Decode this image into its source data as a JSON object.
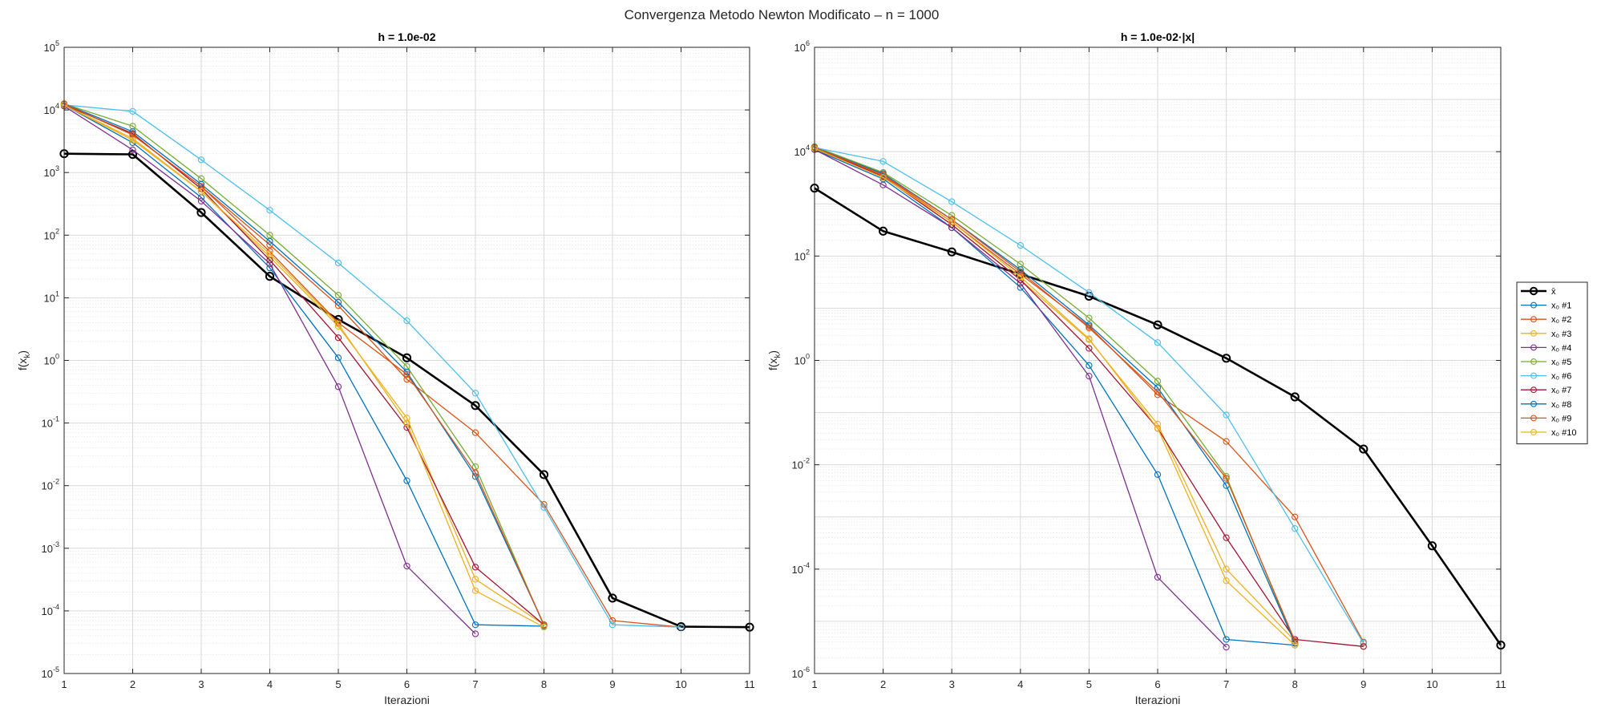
{
  "figure_title": "Convergenza Metodo Newton Modificato – n = 1000",
  "colors": {
    "xbar": "#000000",
    "series": [
      "#0072BD",
      "#D95319",
      "#EDB120",
      "#7E2F8E",
      "#77AC30",
      "#4DBEEE",
      "#A2142F",
      "#0072BD",
      "#D95319",
      "#EDB120"
    ]
  },
  "legend": {
    "placement": "outside-right",
    "entries": [
      "x̄",
      "x₀ #1",
      "x₀ #2",
      "x₀ #3",
      "x₀ #4",
      "x₀ #5",
      "x₀ #6",
      "x₀ #7",
      "x₀ #8",
      "x₀ #9",
      "x₀ #10"
    ]
  },
  "chart_data": [
    {
      "type": "line",
      "title": "h = 1.0e-02",
      "xlabel": "Iterazioni",
      "ylabel_main": "f(x",
      "ylabel_sub": "k",
      "ylabel_close": ")",
      "yscale": "log",
      "xlim": [
        1,
        11
      ],
      "ylim_exp": [
        -5,
        5
      ],
      "xticks": [
        "1",
        "2",
        "3",
        "4",
        "5",
        "6",
        "7",
        "8",
        "9",
        "10",
        "11"
      ],
      "yticks": [
        {
          "base": "10",
          "exp": "-5"
        },
        {
          "base": "10",
          "exp": "-4"
        },
        {
          "base": "10",
          "exp": "-3"
        },
        {
          "base": "10",
          "exp": "-2"
        },
        {
          "base": "10",
          "exp": "-1"
        },
        {
          "base": "10",
          "exp": "0"
        },
        {
          "base": "10",
          "exp": "1"
        },
        {
          "base": "10",
          "exp": "2"
        },
        {
          "base": "10",
          "exp": "3"
        },
        {
          "base": "10",
          "exp": "4"
        },
        {
          "base": "10",
          "exp": "5"
        }
      ],
      "grid": true,
      "series": [
        {
          "x": [
            1,
            2,
            3,
            4,
            5,
            6,
            7,
            8,
            9,
            10,
            11
          ],
          "y": [
            2000,
            1950,
            230,
            22,
            4.5,
            1.1,
            0.19,
            0.015,
            0.00016,
            5.6e-05,
            5.5e-05
          ]
        },
        {
          "x": [
            1,
            2,
            3,
            4,
            5,
            6,
            7,
            8
          ],
          "y": [
            12000,
            3000,
            400,
            30,
            1.1,
            0.012,
            6e-05,
            5.7e-05
          ]
        },
        {
          "x": [
            1,
            2,
            3,
            4,
            5,
            6,
            7,
            8,
            9,
            10
          ],
          "y": [
            12500,
            4000,
            600,
            70,
            7.5,
            0.5,
            0.07,
            0.005,
            7e-05,
            5.5e-05
          ]
        },
        {
          "x": [
            1,
            2,
            3,
            4,
            5,
            6,
            7,
            8
          ],
          "y": [
            12000,
            3500,
            500,
            45,
            3.5,
            0.12,
            0.00032,
            6e-05
          ]
        },
        {
          "x": [
            1,
            2,
            3,
            4,
            5,
            6,
            7
          ],
          "y": [
            11500,
            2300,
            350,
            35,
            0.38,
            0.00052,
            4.3e-05
          ]
        },
        {
          "x": [
            1,
            2,
            3,
            4,
            5,
            6,
            7,
            8
          ],
          "y": [
            12500,
            5500,
            800,
            100,
            11,
            0.8,
            0.02,
            5.8e-05
          ]
        },
        {
          "x": [
            1,
            2,
            3,
            4,
            5,
            6,
            7,
            8,
            9,
            10
          ],
          "y": [
            12000,
            9500,
            1600,
            250,
            36,
            4.3,
            0.3,
            0.0045,
            6e-05,
            5.5e-05
          ]
        },
        {
          "x": [
            1,
            2,
            3,
            4,
            5,
            6,
            7,
            8
          ],
          "y": [
            12000,
            4200,
            550,
            40,
            2.3,
            0.085,
            0.0005,
            6e-05
          ]
        },
        {
          "x": [
            1,
            2,
            3,
            4,
            5,
            6,
            7,
            8
          ],
          "y": [
            12500,
            4500,
            650,
            80,
            8.5,
            0.65,
            0.014,
            6e-05
          ]
        },
        {
          "x": [
            1,
            2,
            3,
            4,
            5,
            6,
            7,
            8
          ],
          "y": [
            12500,
            4000,
            600,
            55,
            4,
            0.6,
            0.016,
            6e-05
          ]
        },
        {
          "x": [
            1,
            2,
            3,
            4,
            5,
            6,
            7,
            8
          ],
          "y": [
            12000,
            3300,
            500,
            50,
            3.8,
            0.1,
            0.00021,
            5.5e-05
          ]
        }
      ]
    },
    {
      "type": "line",
      "title": "h = 1.0e-02·|x|",
      "xlabel": "Iterazioni",
      "ylabel_main": "f(x",
      "ylabel_sub": "k",
      "ylabel_close": ")",
      "yscale": "log",
      "xlim": [
        1,
        11
      ],
      "ylim_exp": [
        -6,
        6
      ],
      "xticks": [
        "1",
        "2",
        "3",
        "4",
        "5",
        "6",
        "7",
        "8",
        "9",
        "10",
        "11"
      ],
      "yticks": [
        {
          "base": "10",
          "exp": "-6"
        },
        {
          "base": "10",
          "exp": "-4"
        },
        {
          "base": "10",
          "exp": "-2"
        },
        {
          "base": "10",
          "exp": "0"
        },
        {
          "base": "10",
          "exp": "2"
        },
        {
          "base": "10",
          "exp": "4"
        },
        {
          "base": "10",
          "exp": "6"
        }
      ],
      "grid": true,
      "series": [
        {
          "x": [
            1,
            2,
            3,
            4,
            5,
            6,
            7,
            8,
            9,
            10,
            11
          ],
          "y": [
            2000,
            300,
            120,
            45,
            17,
            4.8,
            1.1,
            0.2,
            0.02,
            0.00028,
            3.5e-06
          ]
        },
        {
          "x": [
            1,
            2,
            3,
            4,
            5,
            6,
            7,
            8
          ],
          "y": [
            11000,
            3000,
            350,
            25,
            0.8,
            0.0065,
            4.5e-06,
            3.5e-06
          ]
        },
        {
          "x": [
            1,
            2,
            3,
            4,
            5,
            6,
            7,
            8,
            9
          ],
          "y": [
            12000,
            3500,
            450,
            45,
            4.5,
            0.22,
            0.028,
            0.001,
            4e-06
          ]
        },
        {
          "x": [
            1,
            2,
            3,
            4,
            5,
            6,
            7,
            8
          ],
          "y": [
            11500,
            3300,
            400,
            35,
            2.5,
            0.06,
            0.0001,
            4.2e-06
          ]
        },
        {
          "x": [
            1,
            2,
            3,
            4,
            5,
            6,
            7
          ],
          "y": [
            11000,
            2300,
            350,
            30,
            0.5,
            7e-05,
            3.2e-06
          ]
        },
        {
          "x": [
            1,
            2,
            3,
            4,
            5,
            6,
            7,
            8
          ],
          "y": [
            12500,
            4000,
            600,
            70,
            6.5,
            0.4,
            0.006,
            3.8e-06
          ]
        },
        {
          "x": [
            1,
            2,
            3,
            4,
            5,
            6,
            7,
            8,
            9
          ],
          "y": [
            12000,
            6500,
            1100,
            160,
            20,
            2.2,
            0.09,
            0.0006,
            3.8e-06
          ]
        },
        {
          "x": [
            1,
            2,
            3,
            4,
            5,
            6,
            7,
            8,
            9
          ],
          "y": [
            12000,
            3300,
            400,
            35,
            1.7,
            0.05,
            0.0004,
            4.5e-06,
            3.3e-06
          ]
        },
        {
          "x": [
            1,
            2,
            3,
            4,
            5,
            6,
            7,
            8
          ],
          "y": [
            12000,
            3800,
            500,
            55,
            4.8,
            0.3,
            0.004,
            3.8e-06
          ]
        },
        {
          "x": [
            1,
            2,
            3,
            4,
            5,
            6,
            7,
            8
          ],
          "y": [
            12000,
            3600,
            500,
            50,
            4.2,
            0.25,
            0.0055,
            4.2e-06
          ]
        },
        {
          "x": [
            1,
            2,
            3,
            4,
            5,
            6,
            7,
            8
          ],
          "y": [
            11500,
            3200,
            450,
            40,
            2.6,
            0.05,
            6e-05,
            3.5e-06
          ]
        }
      ]
    }
  ]
}
